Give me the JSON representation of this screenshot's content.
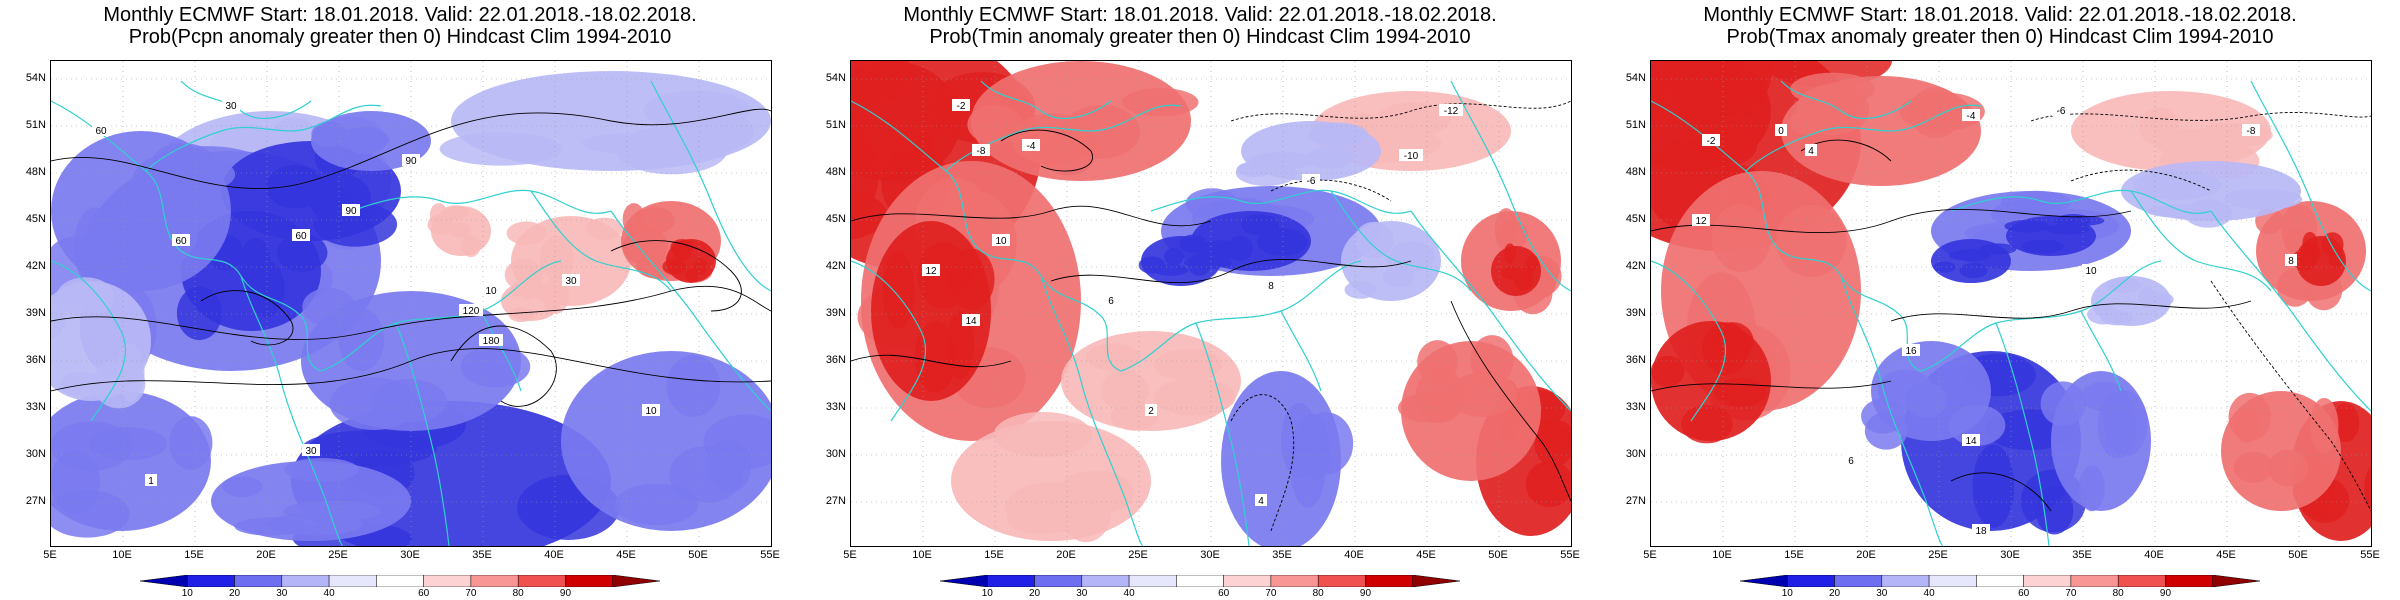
{
  "panels": [
    {
      "title_line1": "Monthly ECMWF Start: 18.01.2018. Valid: 22.01.2018.-18.02.2018.",
      "title_line2": "Prob(Pcpn anomaly greater then 0) Hindcast Clim 1994-2010",
      "variable": "Pcpn",
      "contour_labels": [
        "60",
        "30",
        "90",
        "60",
        "10",
        "30",
        "120",
        "30",
        "1",
        "10",
        "60",
        "90",
        "180"
      ]
    },
    {
      "title_line1": "Monthly ECMWF Start: 18.01.2018. Valid: 22.01.2018.-18.02.2018.",
      "title_line2": "Prob(Tmin anomaly greater then 0) Hindcast Clim 1994-2010",
      "variable": "Tmin",
      "contour_labels": [
        "-2",
        "-4",
        "-8",
        "-12",
        "-10",
        "12",
        "14",
        "10",
        "6",
        "4",
        "8",
        "-6",
        "2"
      ]
    },
    {
      "title_line1": "Monthly ECMWF Start: 18.01.2018. Valid: 22.01.2018.-18.02.2018.",
      "title_line2": "Prob(Tmax anomaly greater then 0) Hindcast Clim 1994-2010",
      "variable": "Tmax",
      "contour_labels": [
        "-6",
        "-4",
        "-2",
        "4",
        "0",
        "-8",
        "12",
        "16",
        "14",
        "18",
        "10",
        "6",
        "8"
      ]
    }
  ],
  "lat_labels": [
    "54N",
    "51N",
    "48N",
    "45N",
    "42N",
    "39N",
    "36N",
    "33N",
    "30N",
    "27N"
  ],
  "lon_labels": [
    "5E",
    "10E",
    "15E",
    "20E",
    "25E",
    "30E",
    "35E",
    "40E",
    "45E",
    "50E",
    "55E"
  ],
  "colorbar": {
    "labels": [
      "10",
      "20",
      "30",
      "40",
      "60",
      "70",
      "80",
      "90"
    ],
    "colors": [
      "#0000b0",
      "#2020e6",
      "#6e6ef0",
      "#b4b4f8",
      "#e6e6fc",
      "#ffffff",
      "#fcd2d2",
      "#f89696",
      "#f05050",
      "#d00000",
      "#900000"
    ]
  },
  "colors": {
    "coast": "#30d0d0",
    "blue_strong": "#3535dd",
    "blue_mid": "#7a7af0",
    "blue_light": "#b9b9f6",
    "red_strong": "#e02020",
    "red_mid": "#f07070",
    "red_light": "#f8b8b8",
    "contour": "#000000"
  }
}
